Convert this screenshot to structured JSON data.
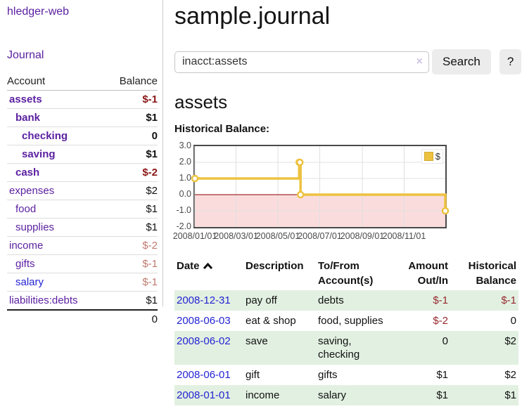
{
  "colors": {
    "accent_purple": "#5a1fa0",
    "link_blue": "#2323d3",
    "negative_strong": "#8b1717",
    "negative_soft": "#c17a70",
    "negative_table": "#96282d",
    "row_stripe_green": "#e2f0e1",
    "chart_line_gold": "#edc240",
    "chart_negative_pink": "#fbdcdc",
    "zero_line_red": "#8b0000"
  },
  "sidebar": {
    "app_title": "hledger-web",
    "journal_label": "Journal",
    "table": {
      "columns": [
        "Account",
        "Balance"
      ],
      "accounts": [
        {
          "name": "assets",
          "depth": 1,
          "balance": "$-1",
          "bold": true,
          "negative": true,
          "link": "visited"
        },
        {
          "name": "bank",
          "depth": 2,
          "balance": "$1",
          "bold": true,
          "negative": false,
          "link": "visited"
        },
        {
          "name": "checking",
          "depth": 3,
          "balance": "0",
          "bold": true,
          "negative": false,
          "link": "visited"
        },
        {
          "name": "saving",
          "depth": 3,
          "balance": "$1",
          "bold": true,
          "negative": false,
          "link": "visited"
        },
        {
          "name": "cash",
          "depth": 2,
          "balance": "$-2",
          "bold": true,
          "negative": true,
          "link": "visited"
        },
        {
          "name": "expenses",
          "depth": 1,
          "balance": "$2",
          "bold": false,
          "negative": false,
          "link": "visited"
        },
        {
          "name": "food",
          "depth": 2,
          "balance": "$1",
          "bold": false,
          "negative": false,
          "link": "visited"
        },
        {
          "name": "supplies",
          "depth": 2,
          "balance": "$1",
          "bold": false,
          "negative": false,
          "link": "visited"
        },
        {
          "name": "income",
          "depth": 1,
          "balance": "$-2",
          "bold": false,
          "negative": true,
          "link": "visited"
        },
        {
          "name": "gifts",
          "depth": 2,
          "balance": "$-1",
          "bold": false,
          "negative": true,
          "link": "visited"
        },
        {
          "name": "salary",
          "depth": 2,
          "balance": "$-1",
          "bold": false,
          "negative": true,
          "link": "unvisited"
        },
        {
          "name": "liabilities:debts",
          "depth": 1,
          "balance": "$1",
          "bold": false,
          "negative": false,
          "link": "visited"
        }
      ],
      "total": "0"
    }
  },
  "main": {
    "title": "sample.journal",
    "search": {
      "value": "inacct:assets",
      "clear_icon": "×",
      "button_label": "Search",
      "help_label": "?"
    },
    "account_heading": "assets",
    "chart_label": "Historical Balance:"
  },
  "chart_data": {
    "type": "line",
    "title": "Historical Balance",
    "step": "after",
    "series": [
      {
        "name": "$",
        "color": "#edc240",
        "points": [
          [
            "2008-01-01",
            1.0
          ],
          [
            "2008-06-01",
            2.0
          ],
          [
            "2008-06-02",
            2.0
          ],
          [
            "2008-06-03",
            0.0
          ],
          [
            "2008-12-31",
            -1.0
          ]
        ]
      }
    ],
    "x_range": [
      "2008-01-01",
      "2008-12-31"
    ],
    "ylim": [
      -2.0,
      3.0
    ],
    "y_ticks": [
      "3.0",
      "2.0",
      "1.0",
      "0.0",
      "-1.0",
      "-2.0"
    ],
    "x_ticks": [
      "2008/01/01",
      "2008/03/01",
      "2008/05/01",
      "2008/07/01",
      "2008/09/01",
      "2008/11/01"
    ],
    "grid": true,
    "grid_color": "#e0e0e0",
    "border_color": "#4a4a4a",
    "zero_line_color": "#8b0000",
    "negative_region_color": "#fbdcdc",
    "legend_position": "top-right",
    "marker": "circle"
  },
  "register": {
    "columns": [
      "Date",
      "Description",
      "To/From Account(s)",
      "Amount Out/In",
      "Historical Balance"
    ],
    "sort_icon": "chevron-up",
    "rows": [
      {
        "date": "2008-12-31",
        "description": "pay off",
        "accounts": "debts",
        "amount": "$-1",
        "balance": "$-1",
        "amount_negative": true,
        "balance_negative": true
      },
      {
        "date": "2008-06-03",
        "description": "eat & shop",
        "accounts": "food, supplies",
        "amount": "$-2",
        "balance": "0",
        "amount_negative": true,
        "balance_negative": false
      },
      {
        "date": "2008-06-02",
        "description": "save",
        "accounts": "saving, checking",
        "amount": "0",
        "balance": "$2",
        "amount_negative": false,
        "balance_negative": false
      },
      {
        "date": "2008-06-01",
        "description": "gift",
        "accounts": "gifts",
        "amount": "$1",
        "balance": "$2",
        "amount_negative": false,
        "balance_negative": false
      },
      {
        "date": "2008-01-01",
        "description": "income",
        "accounts": "salary",
        "amount": "$1",
        "balance": "$1",
        "amount_negative": false,
        "balance_negative": false
      }
    ]
  }
}
